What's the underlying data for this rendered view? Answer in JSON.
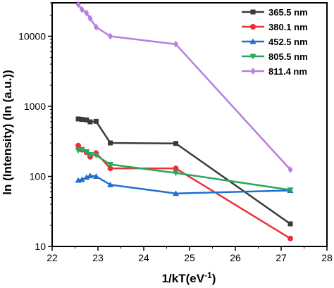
{
  "chart_data": {
    "type": "line",
    "title": "",
    "xlabel": "1/kT(eV",
    "xlabel_sup": "-1",
    "xlabel_suffix": ")",
    "ylabel": "ln (Intensity) (ln (a.u.))",
    "xlim": [
      22,
      28
    ],
    "ylim": [
      10,
      30000
    ],
    "y_scale": "log",
    "xticks": [
      "22",
      "23",
      "24",
      "25",
      "26",
      "27",
      "28"
    ],
    "yticks": [
      "10",
      "100",
      "1000",
      "10000"
    ],
    "legend_position": "top-right",
    "x": [
      22.57,
      22.65,
      22.75,
      22.83,
      22.96,
      23.27,
      24.7,
      27.2
    ],
    "series": [
      {
        "name": "365.5 nm",
        "color": "#3a3a3a",
        "marker": "square",
        "values": [
          660,
          650,
          640,
          600,
          610,
          300,
          295,
          21
        ]
      },
      {
        "name": "380.1 nm",
        "color": "#e8313a",
        "marker": "circle",
        "values": [
          275,
          240,
          220,
          190,
          215,
          130,
          130,
          13
        ]
      },
      {
        "name": "452.5 nm",
        "color": "#1f6fd0",
        "marker": "triangle-up",
        "values": [
          88,
          90,
          97,
          102,
          100,
          76,
          57,
          63
        ]
      },
      {
        "name": "805.5 nm",
        "color": "#27a85a",
        "marker": "triangle-down",
        "values": [
          235,
          242,
          225,
          205,
          200,
          148,
          112,
          64
        ]
      },
      {
        "name": "811.4 nm",
        "color": "#b77ee0",
        "marker": "diamond",
        "values": [
          28500,
          24000,
          21500,
          18000,
          13500,
          10000,
          7700,
          125
        ]
      }
    ]
  }
}
